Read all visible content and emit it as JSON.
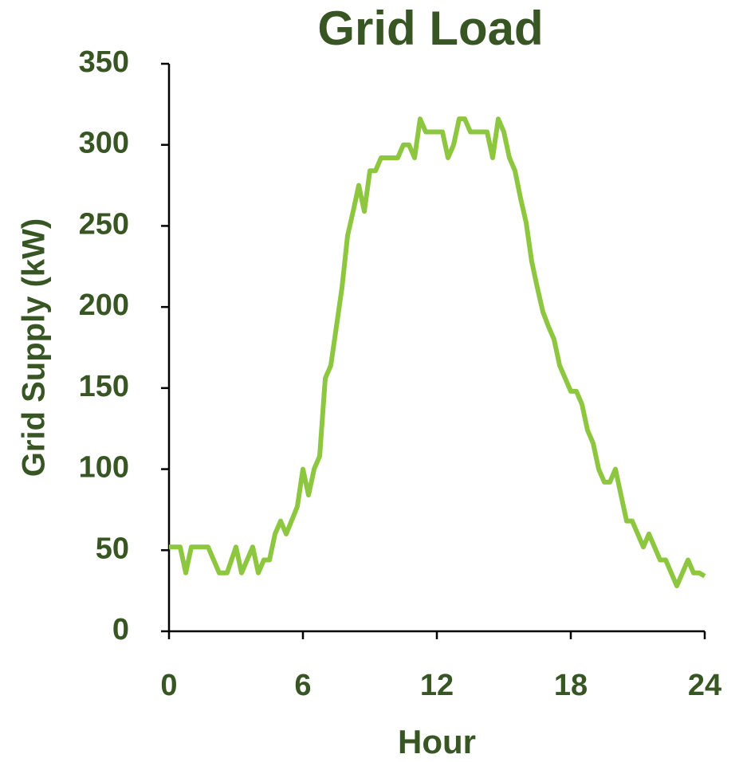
{
  "chart_data": {
    "type": "line",
    "title": "Grid Load",
    "x_label": "Hour",
    "y_label": "Grid Supply (kW)",
    "x": [
      0,
      0.5,
      0.75,
      1,
      1.75,
      2.25,
      2.6,
      3,
      3.25,
      3.75,
      4,
      4.25,
      4.5,
      4.75,
      5,
      5.25,
      5.75,
      6,
      6.25,
      6.5,
      6.75,
      7,
      7.25,
      7.5,
      7.75,
      8,
      8.25,
      8.5,
      8.75,
      9,
      9.25,
      9.5,
      10.25,
      10.5,
      10.75,
      11,
      11.25,
      11.5,
      12.25,
      12.5,
      12.75,
      13,
      13.25,
      13.5,
      14.25,
      14.5,
      14.75,
      15,
      15.25,
      15.5,
      15.75,
      16,
      16.25,
      16.5,
      16.75,
      17,
      17.25,
      17.5,
      17.75,
      18,
      18.25,
      18.5,
      18.75,
      19,
      19.25,
      19.5,
      19.75,
      20,
      20.25,
      20.5,
      20.75,
      21,
      21.25,
      21.5,
      21.75,
      22,
      22.25,
      22.5,
      22.75,
      23,
      23.25,
      23.5,
      23.75,
      24
    ],
    "series": [
      {
        "name": "Grid Supply",
        "color": "#8dc63f",
        "values": [
          52,
          52,
          36,
          52,
          52,
          36,
          36,
          52,
          36,
          52,
          36,
          44,
          44,
          60,
          68,
          60,
          77,
          100,
          84,
          100,
          108,
          156,
          164,
          188,
          212,
          244,
          259,
          275,
          259,
          284,
          284,
          292,
          292,
          300,
          300,
          292,
          316,
          308,
          308,
          292,
          300,
          316,
          316,
          308,
          308,
          292,
          316,
          308,
          292,
          284,
          267,
          252,
          228,
          212,
          197,
          188,
          180,
          164,
          156,
          148,
          148,
          140,
          124,
          116,
          100,
          92,
          92,
          100,
          84,
          68,
          68,
          60,
          52,
          60,
          52,
          44,
          44,
          36,
          28,
          36,
          44,
          36,
          36,
          34
        ]
      }
    ],
    "xlim": [
      0,
      24
    ],
    "xticks": [
      0,
      6,
      12,
      18,
      24
    ],
    "ylim": [
      0,
      350
    ],
    "yticks": [
      0,
      50,
      100,
      150,
      200,
      250,
      300,
      350
    ]
  }
}
